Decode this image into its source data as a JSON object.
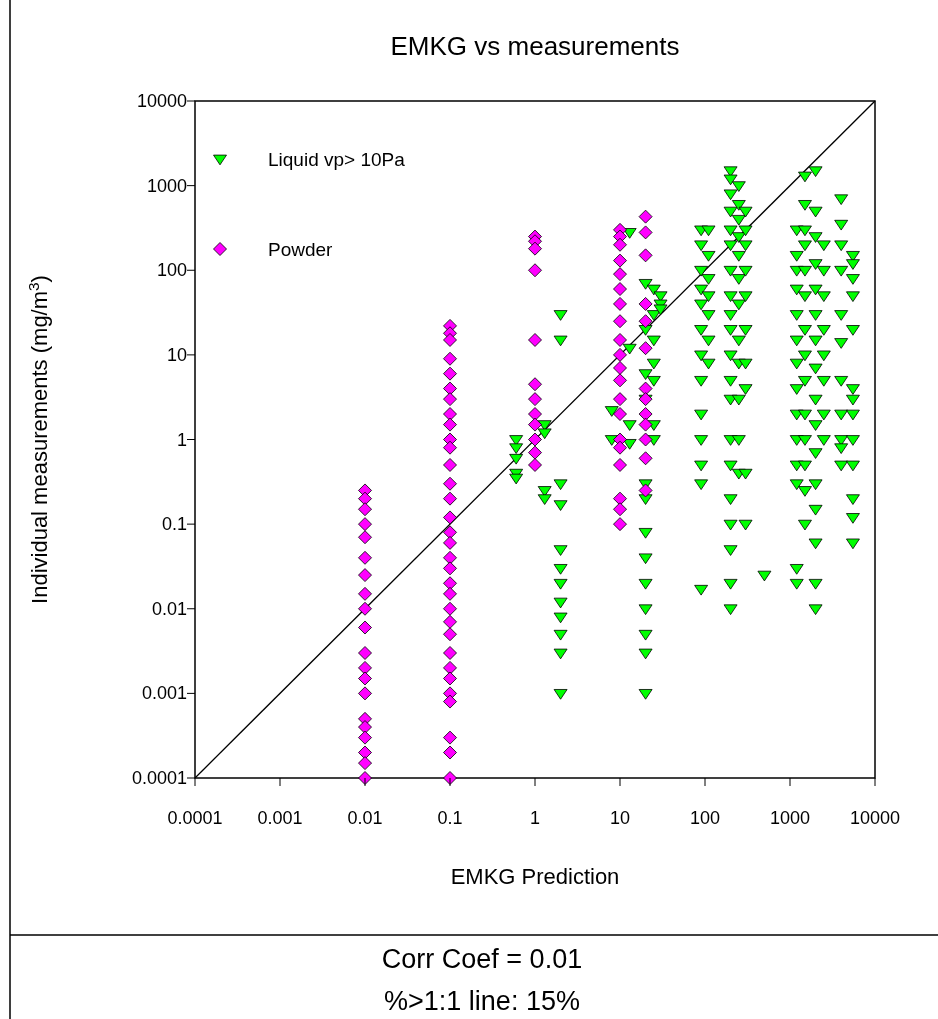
{
  "chart_data": {
    "type": "scatter",
    "title": "EMKG vs measurements",
    "xlabel": "EMKG Prediction",
    "ylabel": "Individual  measurements (mg/m$^{3}$)",
    "log": "xy",
    "xlim": [
      0.0001,
      10000
    ],
    "ylim": [
      0.0001,
      10000
    ],
    "xticks": [
      0.0001,
      0.001,
      0.01,
      0.1,
      1,
      10,
      100,
      1000,
      10000
    ],
    "yticks": [
      0.0001,
      0.001,
      0.01,
      0.1,
      1,
      10,
      100,
      1000,
      10000
    ],
    "grid": false,
    "legend": "top left",
    "annotations": [
      "Corr Coef = 0.01",
      "%>1:1 line: 15%"
    ],
    "series": [
      {
        "name": null,
        "type": "line",
        "color": "#000000",
        "marker": "none",
        "line_style": "solid",
        "x": [
          0.0001,
          10000
        ],
        "values": [
          0.0001,
          10000
        ]
      },
      {
        "name": "Liquid vp> 10Pa",
        "color": "#00ff00",
        "marker": "triangle-down",
        "x": [
          0.6,
          0.6,
          0.6,
          0.6,
          0.6,
          1.3,
          1.3,
          1.3,
          1.3,
          2,
          2,
          2,
          2,
          2,
          2,
          2,
          2,
          2,
          2,
          2,
          2,
          8,
          8,
          13,
          13,
          13,
          13,
          20,
          20,
          20,
          20,
          25,
          20,
          20,
          20,
          20,
          20,
          20,
          20,
          20,
          20,
          25,
          25,
          25,
          25,
          25,
          25,
          30,
          30,
          30,
          90,
          90,
          90,
          90,
          90,
          90,
          90,
          90,
          90,
          90,
          90,
          90,
          90,
          110,
          110,
          110,
          110,
          110,
          110,
          110,
          200,
          200,
          200,
          200,
          200,
          200,
          200,
          200,
          200,
          200,
          200,
          200,
          200,
          200,
          200,
          200,
          200,
          200,
          200,
          200,
          250,
          250,
          250,
          250,
          250,
          250,
          250,
          250,
          250,
          250,
          250,
          250,
          300,
          300,
          300,
          300,
          300,
          300,
          300,
          300,
          300,
          300,
          500,
          1200,
          1200,
          1200,
          1200,
          1200,
          1200,
          1200,
          1200,
          1200,
          1200,
          1200,
          1200,
          1200,
          1200,
          1500,
          1500,
          1500,
          1500,
          1500,
          1500,
          1500,
          1500,
          1500,
          1500,
          1500,
          1500,
          1500,
          1500,
          2000,
          2000,
          2000,
          2000,
          2000,
          2000,
          2000,
          2000,
          2000,
          2000,
          2000,
          2000,
          2000,
          2000,
          2000,
          2000,
          2500,
          2500,
          2500,
          2500,
          2500,
          2500,
          2500,
          2500,
          4000,
          4000,
          4000,
          4000,
          4000,
          4000,
          4000,
          4000,
          4000,
          4000,
          4000,
          5500,
          5500,
          5500,
          5500,
          5500,
          5500,
          5500,
          5500,
          5500,
          5500,
          5500,
          5500,
          5500
        ],
        "values": [
          1,
          0.8,
          0.6,
          0.4,
          0.35,
          1.5,
          1.2,
          0.25,
          0.2,
          30,
          15,
          0.3,
          0.17,
          0.05,
          0.03,
          0.02,
          0.012,
          0.008,
          0.005,
          0.003,
          0.001,
          2.2,
          1,
          280,
          12,
          1.5,
          0.9,
          70,
          20,
          6,
          3,
          1,
          0.3,
          0.2,
          0.08,
          0.04,
          0.02,
          0.01,
          0.005,
          0.003,
          0.001,
          60,
          30,
          15,
          8,
          5,
          1.5,
          50,
          40,
          35,
          300,
          200,
          100,
          60,
          40,
          20,
          10,
          5,
          2,
          1,
          0.5,
          0.3,
          0.017,
          300,
          150,
          80,
          50,
          30,
          15,
          8,
          1500,
          1200,
          800,
          500,
          300,
          200,
          100,
          50,
          30,
          20,
          10,
          5,
          3,
          1,
          0.5,
          0.2,
          0.1,
          0.05,
          0.02,
          0.01,
          1000,
          600,
          400,
          250,
          150,
          80,
          40,
          15,
          8,
          3,
          1,
          0.4,
          500,
          300,
          200,
          100,
          50,
          20,
          8,
          4,
          0.4,
          0.1,
          0.025,
          300,
          150,
          100,
          60,
          30,
          15,
          8,
          4,
          2,
          1,
          0.5,
          0.3,
          0.03,
          0.02,
          1300,
          600,
          300,
          200,
          100,
          50,
          20,
          10,
          5,
          2,
          1,
          0.5,
          0.25,
          0.1,
          1500,
          500,
          250,
          120,
          60,
          30,
          15,
          7,
          3,
          1.5,
          0.7,
          0.3,
          0.15,
          0.06,
          0.02,
          0.01,
          200,
          100,
          50,
          20,
          10,
          5,
          2,
          1,
          700,
          350,
          200,
          100,
          30,
          14,
          5,
          2,
          1,
          0.8,
          0.5,
          150,
          120,
          80,
          50,
          20,
          4,
          3,
          2,
          1,
          0.5,
          0.2,
          0.12,
          0.06
        ]
      },
      {
        "name": "Powder",
        "color": "#ff00ff",
        "marker": "diamond",
        "x": [
          0.01,
          0.01,
          0.01,
          0.01,
          0.01,
          0.01,
          0.01,
          0.01,
          0.01,
          0.01,
          0.01,
          0.01,
          0.01,
          0.01,
          0.01,
          0.01,
          0.01,
          0.01,
          0.01,
          0.01,
          0.1,
          0.1,
          0.1,
          0.1,
          0.1,
          0.1,
          0.1,
          0.1,
          0.1,
          0.1,
          0.1,
          0.1,
          0.1,
          0.1,
          0.1,
          0.1,
          0.1,
          0.1,
          0.1,
          0.1,
          0.1,
          0.1,
          0.1,
          0.1,
          0.1,
          0.1,
          0.1,
          0.1,
          0.1,
          0.1,
          0.1,
          0.1,
          1,
          1,
          1,
          1,
          1,
          1,
          1,
          1,
          1,
          1,
          1,
          1,
          10,
          10,
          10,
          10,
          10,
          10,
          10,
          10,
          10,
          10,
          10,
          10,
          10,
          10,
          10,
          10,
          10,
          10,
          10,
          10,
          20,
          20,
          20,
          20,
          20,
          20,
          20,
          20,
          20,
          20,
          20,
          20,
          20
        ],
        "values": [
          0.25,
          0.2,
          0.15,
          0.1,
          0.07,
          0.04,
          0.025,
          0.015,
          0.01,
          0.006,
          0.003,
          0.002,
          0.0015,
          0.001,
          0.0005,
          0.0004,
          0.0003,
          0.0002,
          0.00015,
          0.0001,
          22,
          18,
          15,
          9,
          6,
          4,
          3,
          2,
          1.5,
          1,
          0.8,
          0.5,
          0.3,
          0.2,
          0.12,
          0.08,
          0.06,
          0.04,
          0.03,
          0.02,
          0.015,
          0.01,
          0.007,
          0.005,
          0.003,
          0.002,
          0.0015,
          0.001,
          0.0008,
          0.0003,
          0.0002,
          0.0001,
          250,
          220,
          180,
          100,
          15,
          4.5,
          3,
          2,
          1.5,
          1,
          0.7,
          0.5,
          300,
          250,
          200,
          130,
          90,
          60,
          40,
          25,
          15,
          10,
          7,
          5,
          3,
          2,
          1,
          0.8,
          0.5,
          0.2,
          0.15,
          0.1,
          430,
          280,
          150,
          40,
          25,
          12,
          4,
          3,
          2,
          1.5,
          1,
          0.6,
          0.25
        ]
      }
    ]
  }
}
